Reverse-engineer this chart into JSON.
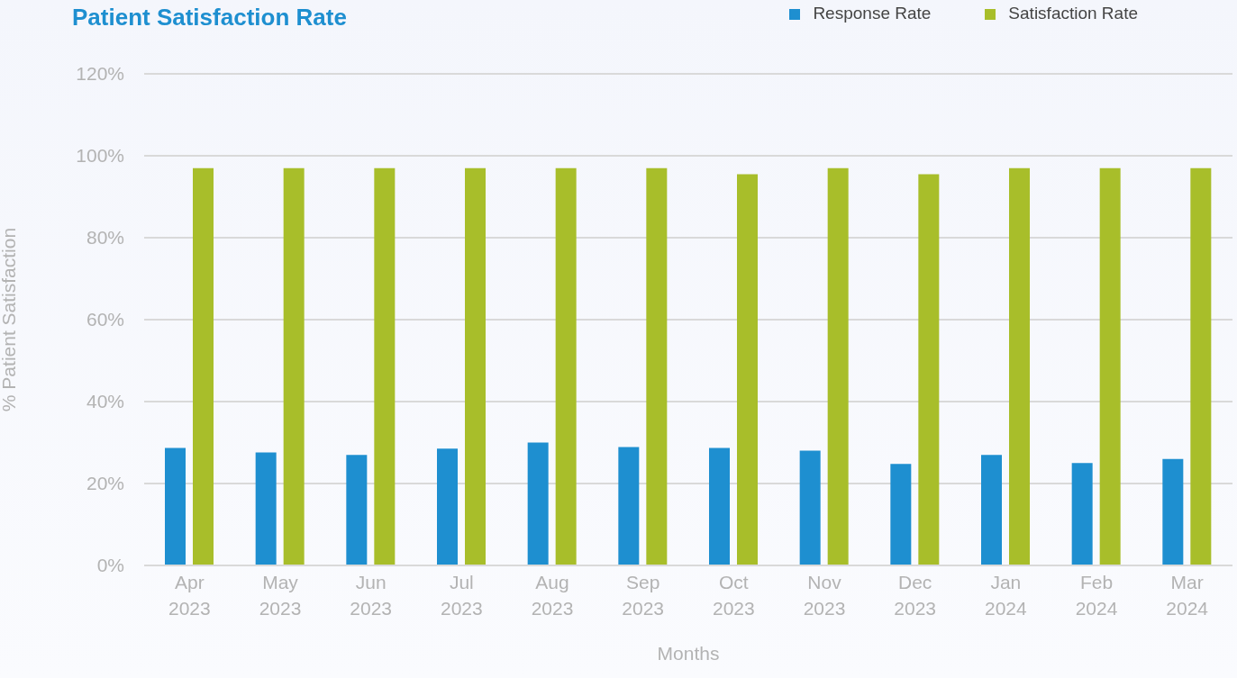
{
  "chart_data": {
    "type": "bar",
    "title": "Patient Satisfaction Rate",
    "xlabel": "Months",
    "ylabel": "% Patient Satisfaction",
    "categories": [
      "Apr 2023",
      "May 2023",
      "Jun 2023",
      "Jul 2023",
      "Aug 2023",
      "Sep 2023",
      "Oct 2023",
      "Nov 2023",
      "Dec 2023",
      "Jan 2024",
      "Feb 2024",
      "Mar 2024"
    ],
    "series": [
      {
        "name": "Response Rate",
        "color": "#1e8fd0",
        "values": [
          28.7,
          27.6,
          27,
          28.5,
          30,
          28.9,
          28.7,
          28,
          24.8,
          27,
          25,
          26
        ]
      },
      {
        "name": "Satisfaction Rate",
        "color": "#a8be2a",
        "values": [
          97,
          97,
          97,
          97,
          97,
          97,
          95.5,
          97,
          95.5,
          97,
          97,
          97
        ]
      }
    ],
    "ylim": [
      0,
      120
    ],
    "yticks": [
      {
        "value": 0,
        "label": "0%"
      },
      {
        "value": 20,
        "label": "20%"
      },
      {
        "value": 40,
        "label": "40%"
      },
      {
        "value": 60,
        "label": "60%"
      },
      {
        "value": 80,
        "label": "80%"
      },
      {
        "value": 100,
        "label": "100%"
      },
      {
        "value": 120,
        "label": "120%"
      }
    ],
    "grid": "y",
    "legend": "top right"
  }
}
